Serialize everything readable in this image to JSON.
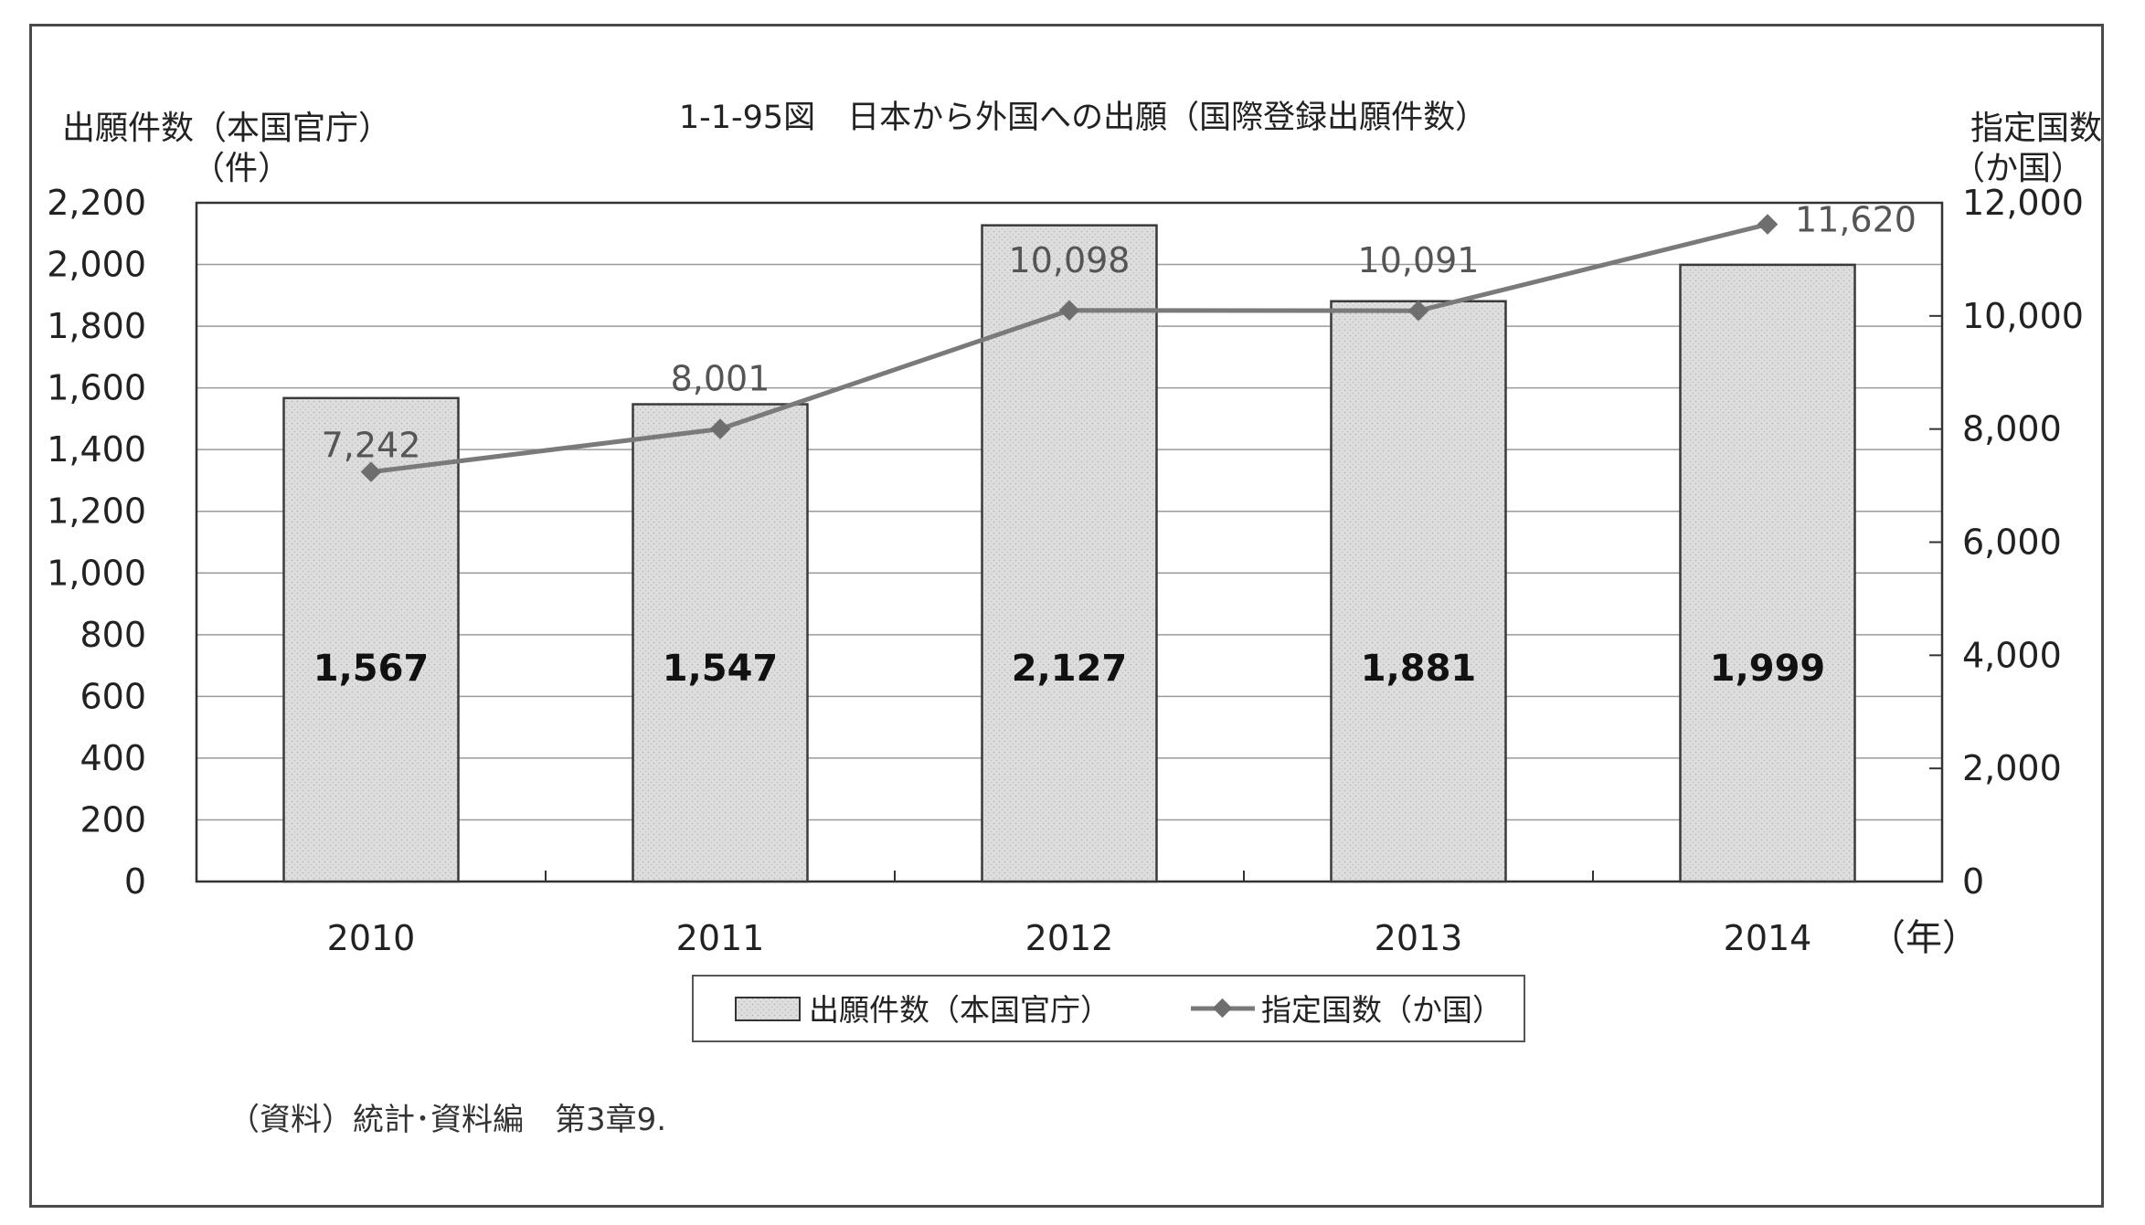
{
  "chart_data": {
    "type": "bar",
    "title": "1-1-95図　日本から外国への出願（国際登録出願件数）",
    "left_axis_label_line1": "出願件数（本国官庁）",
    "left_axis_label_line2": "（件）",
    "right_axis_label_line1": "指定国数",
    "right_axis_label_line2": "（か国）",
    "x_unit_label": "（年）",
    "categories": [
      "2010",
      "2011",
      "2012",
      "2013",
      "2014"
    ],
    "series": [
      {
        "name": "出願件数（本国官庁）",
        "type": "bar",
        "axis": "left",
        "values": [
          1567,
          1547,
          2127,
          1881,
          1999
        ],
        "labels": [
          "1,567",
          "1,547",
          "2,127",
          "1,881",
          "1,999"
        ]
      },
      {
        "name": "指定国数（か国）",
        "type": "line",
        "axis": "right",
        "values": [
          7242,
          8001,
          10098,
          10091,
          11620
        ],
        "labels": [
          "7,242",
          "8,001",
          "10,098",
          "10,091",
          "11,620"
        ]
      }
    ],
    "left_ylim": [
      0,
      2200
    ],
    "left_ticks": [
      "0",
      "200",
      "400",
      "600",
      "800",
      "1,000",
      "1,200",
      "1,400",
      "1,600",
      "1,800",
      "2,000",
      "2,200"
    ],
    "right_ylim": [
      0,
      12000
    ],
    "right_ticks": [
      "0",
      "2,000",
      "4,000",
      "6,000",
      "8,000",
      "10,000",
      "12,000"
    ],
    "grid": true,
    "legend_position": "bottom"
  },
  "source_note": "（資料）統計･資料編　第3章9.",
  "colors": {
    "bar_fill": "#d9d9d9",
    "bar_stroke": "#3a3a3a",
    "line": "#7a7a7a",
    "marker": "#6e6e6e",
    "grid": "#9a9a9a",
    "axis": "#333333"
  }
}
